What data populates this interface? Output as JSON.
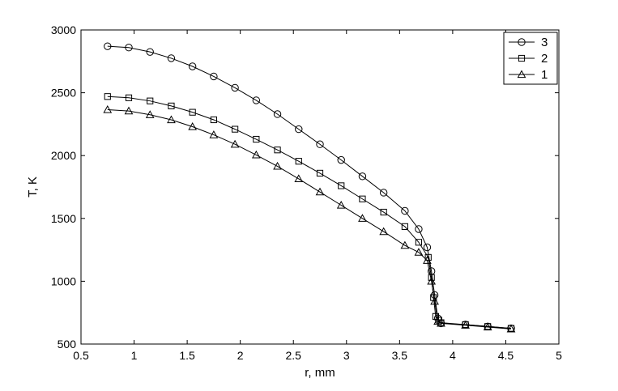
{
  "chart_data": {
    "type": "line",
    "title": "",
    "xlabel": "r, mm",
    "ylabel": "T, K",
    "xlim": [
      0.5,
      5
    ],
    "ylim": [
      500,
      3000
    ],
    "xticks": [
      0.5,
      1,
      1.5,
      2,
      2.5,
      3,
      3.5,
      4,
      4.5,
      5
    ],
    "yticks": [
      500,
      1000,
      1500,
      2000,
      2500,
      3000
    ],
    "xtick_labels": [
      "0.5",
      "1",
      "1.5",
      "2",
      "2.5",
      "3",
      "3.5",
      "4",
      "4.5",
      "5"
    ],
    "ytick_labels": [
      "500",
      "1000",
      "1500",
      "2000",
      "2500",
      "3000"
    ],
    "grid": false,
    "legend_position": "top-right",
    "series": [
      {
        "name": "3",
        "marker": "circle",
        "color": "#000000",
        "x": [
          0.75,
          0.95,
          1.15,
          1.35,
          1.55,
          1.75,
          1.95,
          2.15,
          2.35,
          2.55,
          2.75,
          2.95,
          3.15,
          3.35,
          3.55,
          3.68,
          3.76,
          3.8,
          3.83,
          3.86,
          3.89,
          4.12,
          4.33,
          4.55
        ],
        "y": [
          2870,
          2860,
          2825,
          2775,
          2710,
          2630,
          2540,
          2440,
          2330,
          2210,
          2090,
          1965,
          1835,
          1705,
          1560,
          1415,
          1270,
          1080,
          890,
          705,
          665,
          655,
          640,
          625
        ]
      },
      {
        "name": "2",
        "marker": "square",
        "color": "#000000",
        "x": [
          0.75,
          0.95,
          1.15,
          1.35,
          1.55,
          1.75,
          1.95,
          2.15,
          2.35,
          2.55,
          2.75,
          2.95,
          3.15,
          3.35,
          3.55,
          3.68,
          3.77,
          3.8,
          3.82,
          3.84,
          3.87,
          3.89,
          4.12,
          4.33,
          4.55
        ],
        "y": [
          2470,
          2460,
          2435,
          2395,
          2345,
          2285,
          2210,
          2130,
          2045,
          1955,
          1860,
          1760,
          1655,
          1550,
          1435,
          1310,
          1190,
          1030,
          870,
          720,
          690,
          670,
          655,
          640,
          625
        ]
      },
      {
        "name": "1",
        "marker": "triangle",
        "color": "#000000",
        "x": [
          0.75,
          0.95,
          1.15,
          1.35,
          1.55,
          1.75,
          1.95,
          2.15,
          2.35,
          2.55,
          2.75,
          2.95,
          3.15,
          3.35,
          3.55,
          3.68,
          3.76,
          3.8,
          3.83,
          3.86,
          3.89,
          4.12,
          4.33,
          4.55
        ],
        "y": [
          2365,
          2355,
          2325,
          2285,
          2230,
          2165,
          2090,
          2005,
          1915,
          1815,
          1710,
          1605,
          1500,
          1395,
          1285,
          1230,
          1165,
          1000,
          840,
          680,
          665,
          650,
          635,
          620
        ]
      }
    ]
  }
}
